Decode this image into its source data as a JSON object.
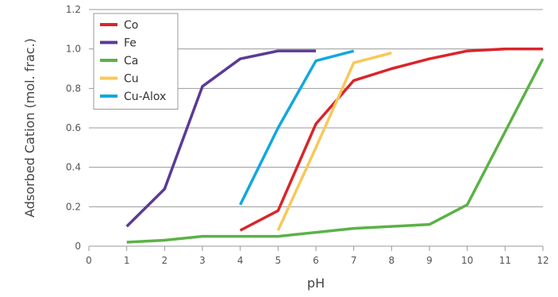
{
  "chart_data": {
    "type": "line",
    "title": "",
    "xlabel": "pH",
    "ylabel": "Adsorbed Cation (mol. frac.)",
    "xlim": [
      0,
      12
    ],
    "ylim": [
      0,
      1.2
    ],
    "x_ticks": [
      0,
      1,
      2,
      3,
      4,
      5,
      6,
      7,
      8,
      9,
      10,
      11,
      12
    ],
    "x_tick_labels": [
      "0",
      "1",
      "2",
      "3",
      "4",
      "5",
      "6",
      "7",
      "8",
      "9",
      "10",
      "11",
      "12"
    ],
    "y_ticks": [
      0,
      0.2,
      0.4,
      0.6,
      0.8,
      1.0,
      1.2
    ],
    "y_tick_labels": [
      "0",
      "0.2",
      "0.4",
      "0.6",
      "0.8",
      "1.0",
      "1.2"
    ],
    "grid": "horizontal",
    "legend": {
      "placement": "top-left"
    },
    "series": [
      {
        "name": "Co",
        "color": "#d9252a",
        "points": [
          [
            4,
            0.08
          ],
          [
            5,
            0.18
          ],
          [
            6,
            0.62
          ],
          [
            7,
            0.84
          ],
          [
            8,
            0.9
          ],
          [
            9,
            0.95
          ],
          [
            10,
            0.99
          ],
          [
            11,
            1.0
          ],
          [
            12,
            1.0
          ]
        ]
      },
      {
        "name": "Fe",
        "color": "#5b3a96",
        "points": [
          [
            1,
            0.1
          ],
          [
            2,
            0.29
          ],
          [
            3,
            0.81
          ],
          [
            4,
            0.95
          ],
          [
            5,
            0.99
          ],
          [
            6,
            0.99
          ]
        ]
      },
      {
        "name": "Ca",
        "color": "#5bb247",
        "points": [
          [
            1,
            0.02
          ],
          [
            2,
            0.03
          ],
          [
            3,
            0.05
          ],
          [
            4,
            0.05
          ],
          [
            5,
            0.05
          ],
          [
            6,
            0.07
          ],
          [
            7,
            0.09
          ],
          [
            8,
            0.1
          ],
          [
            9,
            0.11
          ],
          [
            10,
            0.21
          ],
          [
            11,
            0.58
          ],
          [
            12,
            0.95
          ]
        ]
      },
      {
        "name": "Cu",
        "color": "#f8c85a",
        "points": [
          [
            5,
            0.08
          ],
          [
            6,
            0.5
          ],
          [
            7,
            0.93
          ],
          [
            8,
            0.98
          ]
        ]
      },
      {
        "name": "Cu-Alox",
        "color": "#11a7e0",
        "points": [
          [
            4,
            0.21
          ],
          [
            5,
            0.6
          ],
          [
            6,
            0.94
          ],
          [
            7,
            0.99
          ]
        ]
      }
    ]
  }
}
